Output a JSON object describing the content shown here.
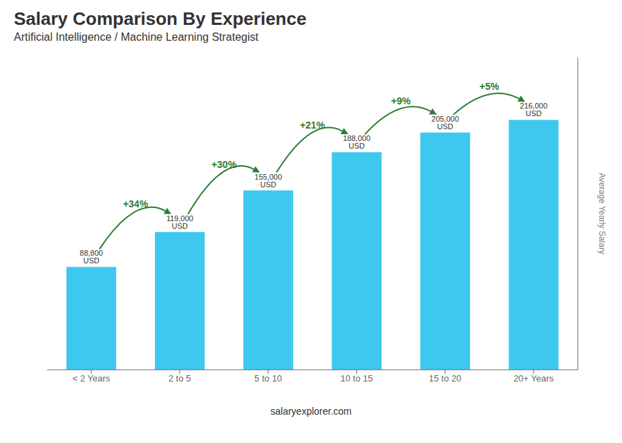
{
  "chart_data": {
    "type": "bar",
    "title": "Salary Comparison By Experience",
    "subtitle": "Artificial Intelligence / Machine Learning Strategist",
    "categories": [
      "< 2 Years",
      "2 to 5",
      "5 to 10",
      "10 to 15",
      "15 to 20",
      "20+ Years"
    ],
    "values": [
      88800,
      119000,
      155000,
      188000,
      205000,
      216000
    ],
    "value_labels": [
      "88,800 USD",
      "119,000 USD",
      "155,000 USD",
      "188,000 USD",
      "205,000 USD",
      "216,000 USD"
    ],
    "annotations": [
      "+34%",
      "+30%",
      "+21%",
      "+9%",
      "+5%"
    ],
    "ylabel": "Average Yearly Salary",
    "source": "salaryexplorer.com",
    "color": "#3ec8ef",
    "ylim": [
      0,
      270000
    ],
    "grid": false,
    "tick_labels": "x"
  }
}
